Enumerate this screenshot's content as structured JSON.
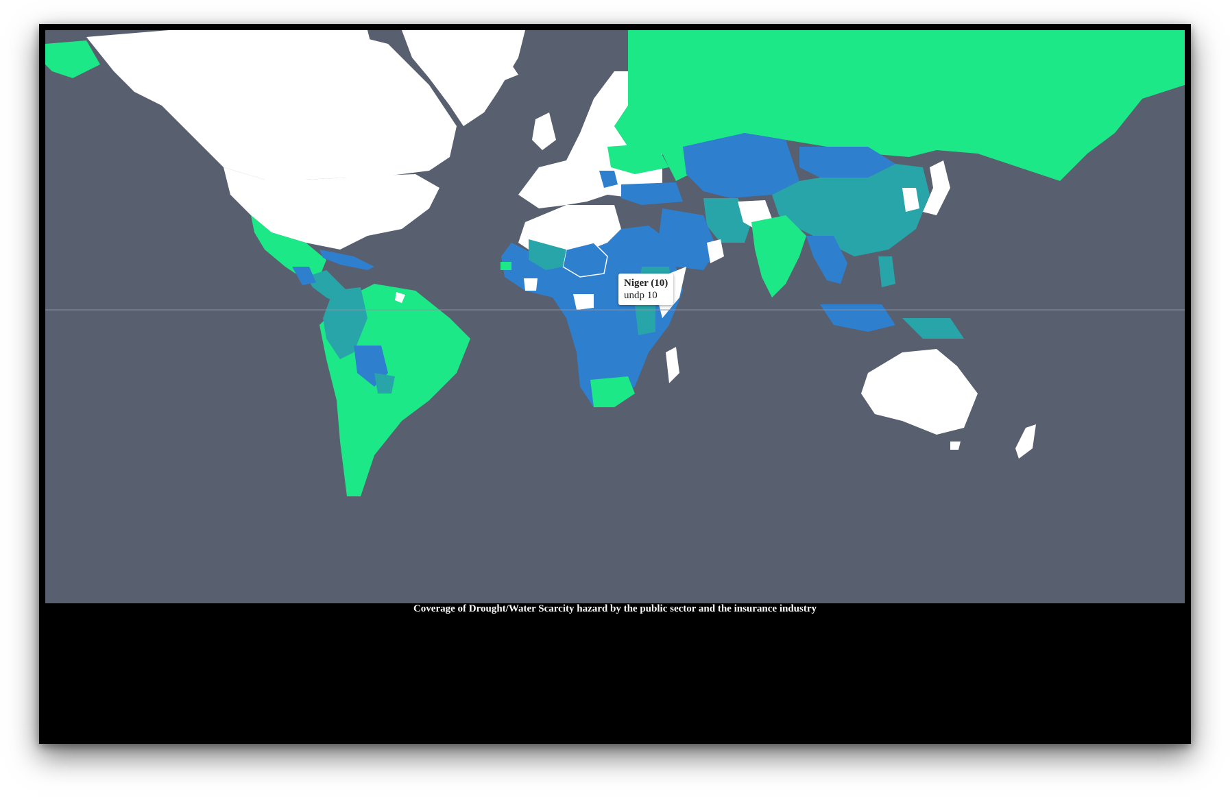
{
  "map": {
    "title": "Coverage of Drought/Water Scarcity hazard by the public sector and the insurance industry",
    "projection": "mercator",
    "equator_line": true,
    "colors": {
      "ocean": "#585f6f",
      "no_data": "#ffffff",
      "green": "#1de887",
      "teal": "#27a5a9",
      "blue": "#2f7fcf",
      "window": "#000000"
    }
  },
  "tooltip": {
    "title": "Niger (10)",
    "body": "undp 10"
  }
}
